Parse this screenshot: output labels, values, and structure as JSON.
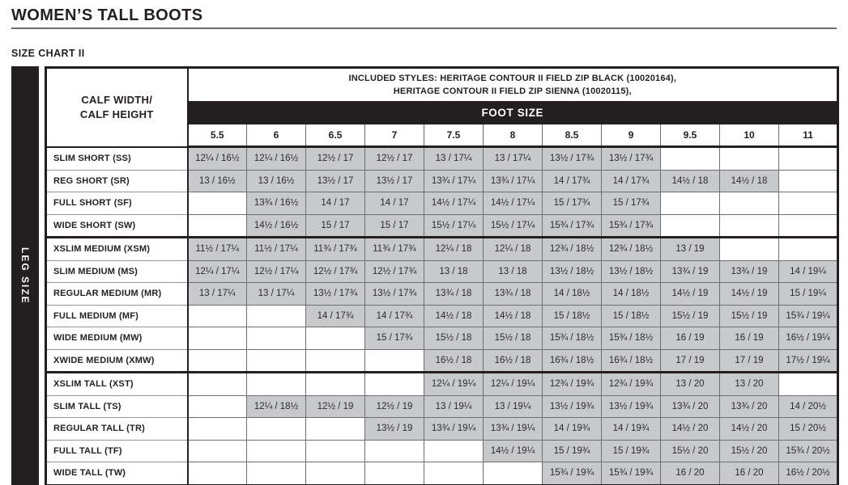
{
  "page": {
    "title": "WOMEN’S TALL BOOTS",
    "subtitle": "SIZE CHART II"
  },
  "table": {
    "leg_size_label": "LEG SIZE",
    "corner": [
      "CALF WIDTH/",
      "CALF HEIGHT"
    ],
    "included_styles": [
      "INCLUDED STYLES: HERITAGE CONTOUR II FIELD ZIP BLACK (10020164),",
      "HERITAGE CONTOUR II FIELD ZIP SIENNA (10020115),"
    ],
    "foot_size_label": "FOOT SIZE",
    "foot_sizes": [
      "5.5",
      "6",
      "6.5",
      "7",
      "7.5",
      "8",
      "8.5",
      "9",
      "9.5",
      "10",
      "11"
    ],
    "colors": {
      "gray_fill": "#c8c9ca",
      "black": "#231f20"
    },
    "rows": [
      {
        "group": "SHORT",
        "label": "SLIM SHORT (SS)",
        "cells": [
          "12¼ / 16½",
          "12¼ / 16½",
          "12½ / 17",
          "12½ / 17",
          "13 / 17¼",
          "13 / 17¼",
          "13½ / 17¾",
          "13½ / 17¾",
          "",
          "",
          ""
        ]
      },
      {
        "group": "SHORT",
        "label": "REG SHORT (SR)",
        "cells": [
          "13 / 16½",
          "13 / 16½",
          "13½ / 17",
          "13½ / 17",
          "13¾ / 17¼",
          "13¾ / 17¼",
          "14 / 17¾",
          "14 / 17¾",
          "14½ / 18",
          "14½ / 18",
          ""
        ]
      },
      {
        "group": "SHORT",
        "label": "FULL SHORT (SF)",
        "cells": [
          "",
          "13¾ / 16½",
          "14 / 17",
          "14 / 17",
          "14½ / 17¼",
          "14½ / 17¼",
          "15 / 17¾",
          "15 / 17¾",
          "",
          "",
          ""
        ]
      },
      {
        "group": "SHORT",
        "label": "WIDE SHORT (SW)",
        "cells": [
          "",
          "14½ / 16½",
          "15 / 17",
          "15 / 17",
          "15½ / 17¼",
          "15½ / 17¼",
          "15¾ / 17¾",
          "15¾ / 17¾",
          "",
          "",
          ""
        ]
      },
      {
        "group": "MEDIUM",
        "label": "XSLIM MEDIUM (XSM)",
        "cells": [
          "11½ / 17¼",
          "11½ / 17¼",
          "11¾ / 17¾",
          "11¾ / 17¾",
          "12¼ / 18",
          "12¼ / 18",
          "12¾ / 18½",
          "12¾ / 18½",
          "13 / 19",
          "",
          ""
        ]
      },
      {
        "group": "MEDIUM",
        "label": "SLIM MEDIUM (MS)",
        "cells": [
          "12¼ / 17¼",
          "12½ / 17¼",
          "12½ / 17¾",
          "12½ / 17¾",
          "13 / 18",
          "13 / 18",
          "13½ / 18½",
          "13½ / 18½",
          "13¾ / 19",
          "13¾ / 19",
          "14 / 19¼"
        ]
      },
      {
        "group": "MEDIUM",
        "label": "REGULAR MEDIUM (MR)",
        "cells": [
          "13 / 17¼",
          "13 / 17¼",
          "13½ / 17¾",
          "13½ / 17¾",
          "13¾ / 18",
          "13¾ / 18",
          "14 / 18½",
          "14 / 18½",
          "14½ / 19",
          "14½ / 19",
          "15 / 19¼"
        ]
      },
      {
        "group": "MEDIUM",
        "label": "FULL MEDIUM (MF)",
        "cells": [
          "",
          "",
          "14 / 17¾",
          "14 / 17¾",
          "14½ / 18",
          "14½ / 18",
          "15 / 18½",
          "15 / 18½",
          "15½ / 19",
          "15½ / 19",
          "15¾ / 19¼"
        ]
      },
      {
        "group": "MEDIUM",
        "label": "WIDE MEDIUM (MW)",
        "cells": [
          "",
          "",
          "",
          "15 / 17¾",
          "15½ / 18",
          "15½ / 18",
          "15¾ / 18½",
          "15¾ / 18½",
          "16 / 19",
          "16 / 19",
          "16½ / 19¼"
        ]
      },
      {
        "group": "MEDIUM",
        "label": "XWIDE MEDIUM (XMW)",
        "cells": [
          "",
          "",
          "",
          "",
          "16½ / 18",
          "16½ / 18",
          "16¾ / 18½",
          "16¾ / 18½",
          "17 / 19",
          "17 / 19",
          "17½ / 19¼"
        ]
      },
      {
        "group": "TALL",
        "label": "XSLIM TALL (XST)",
        "cells": [
          "",
          "",
          "",
          "",
          "12¼ / 19¼",
          "12¼ / 19¼",
          "12¾ / 19¾",
          "12¾ / 19¾",
          "13 / 20",
          "13 / 20",
          ""
        ]
      },
      {
        "group": "TALL",
        "label": "SLIM TALL (TS)",
        "cells": [
          "",
          "12¼ / 18½",
          "12½ / 19",
          "12½ / 19",
          "13 / 19¼",
          "13 / 19¼",
          "13½ / 19¾",
          "13½ / 19¾",
          "13¾ / 20",
          "13¾ / 20",
          "14 / 20½"
        ]
      },
      {
        "group": "TALL",
        "label": "REGULAR TALL (TR)",
        "cells": [
          "",
          "",
          "",
          "13½ / 19",
          "13¾ / 19¼",
          "13¾ / 19¼",
          "14 / 19¾",
          "14 / 19¾",
          "14½ / 20",
          "14½ / 20",
          "15 / 20½"
        ]
      },
      {
        "group": "TALL",
        "label": "FULL TALL (TF)",
        "cells": [
          "",
          "",
          "",
          "",
          "",
          "14½ / 19¼",
          "15 / 19¾",
          "15 / 19¾",
          "15½ / 20",
          "15½ / 20",
          "15¾ / 20½"
        ]
      },
      {
        "group": "TALL",
        "label": "WIDE TALL (TW)",
        "cells": [
          "",
          "",
          "",
          "",
          "",
          "",
          "15¾ / 19¾",
          "15¾ / 19¾",
          "16 / 20",
          "16 / 20",
          "16½ / 20½"
        ]
      }
    ]
  }
}
